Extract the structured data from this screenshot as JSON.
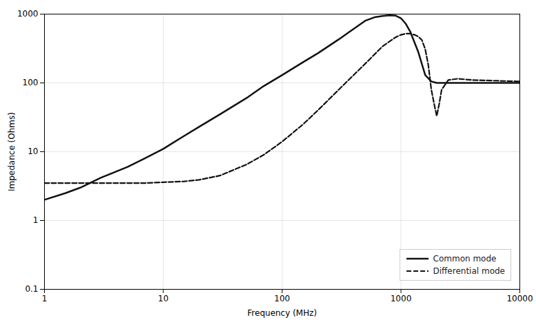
{
  "chart_data": {
    "type": "line",
    "title": "",
    "xlabel": "Frequency (MHz)",
    "ylabel": "Impedance (Ohms)",
    "log": true,
    "grid": true,
    "legend": "lower right",
    "xlim": [
      1,
      10000
    ],
    "ylim": [
      0.1,
      1000
    ],
    "xticks": [
      1,
      10,
      100,
      1000,
      10000
    ],
    "yticks": [
      0.1,
      1,
      10,
      100,
      1000
    ],
    "series": [
      {
        "name": "Common mode",
        "color": "#111111",
        "line_style": "solid",
        "x": [
          1,
          1.5,
          2,
          3,
          5,
          7,
          10,
          15,
          20,
          30,
          50,
          70,
          100,
          150,
          200,
          300,
          500,
          600,
          700,
          800,
          900,
          1000,
          1100,
          1200,
          1400,
          1600,
          1800,
          2000,
          2500,
          3000,
          4000,
          10000
        ],
        "values": [
          2,
          2.5,
          3,
          4.2,
          6,
          8,
          11,
          17,
          23,
          35,
          60,
          90,
          130,
          200,
          270,
          430,
          800,
          900,
          940,
          960,
          950,
          870,
          720,
          550,
          280,
          130,
          105,
          100,
          100,
          100,
          100,
          100
        ]
      },
      {
        "name": "Differential mode",
        "color": "#111111",
        "line_style": "dashed",
        "x": [
          1,
          2,
          3,
          5,
          7,
          10,
          15,
          20,
          30,
          50,
          70,
          100,
          150,
          200,
          300,
          500,
          700,
          900,
          1000,
          1100,
          1200,
          1300,
          1400,
          1500,
          1600,
          1700,
          1800,
          1900,
          2000,
          2100,
          2200,
          2500,
          3000,
          4000,
          10000
        ],
        "values": [
          3.5,
          3.5,
          3.5,
          3.5,
          3.5,
          3.6,
          3.7,
          3.9,
          4.5,
          6.5,
          9,
          14,
          25,
          40,
          80,
          190,
          340,
          460,
          500,
          520,
          520,
          500,
          470,
          420,
          310,
          180,
          80,
          50,
          33,
          50,
          80,
          110,
          115,
          110,
          105
        ]
      }
    ]
  }
}
